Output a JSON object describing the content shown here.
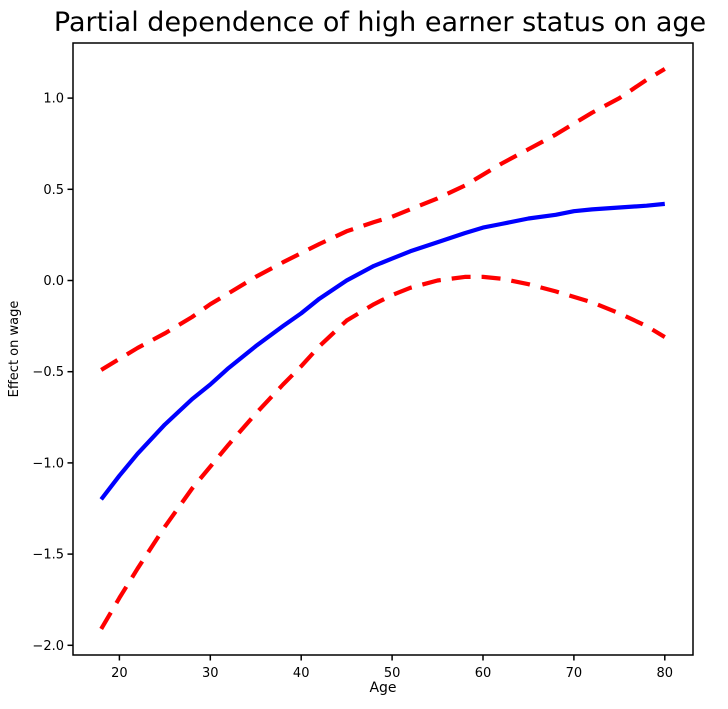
{
  "chart_data": {
    "type": "line",
    "title": "Partial dependence of high earner status on age",
    "xlabel": "Age",
    "ylabel": "Effect on wage",
    "xlim": [
      14.9,
      83.1
    ],
    "ylim": [
      -2.053,
      1.302
    ],
    "x_ticks": [
      20,
      30,
      40,
      50,
      60,
      70,
      80
    ],
    "y_ticks": [
      1.0,
      0.5,
      0.0,
      -0.5,
      -1.0,
      -1.5,
      -2.0
    ],
    "grid": false,
    "legend": null,
    "background_color": "#ffffff",
    "spine_color": "#000000",
    "x": [
      18,
      20,
      22,
      25,
      28,
      30,
      32,
      35,
      38,
      40,
      42,
      45,
      48,
      50,
      52,
      55,
      58,
      60,
      62,
      65,
      68,
      70,
      72,
      75,
      78,
      80
    ],
    "series": [
      {
        "name": "partial-dependence-estimate",
        "color": "#0000ff",
        "style": "solid",
        "width": 4.2,
        "values": [
          -1.2,
          -1.07,
          -0.95,
          -0.79,
          -0.65,
          -0.57,
          -0.48,
          -0.36,
          -0.25,
          -0.18,
          -0.1,
          0.0,
          0.08,
          0.12,
          0.16,
          0.21,
          0.26,
          0.29,
          0.31,
          0.34,
          0.36,
          0.38,
          0.39,
          0.4,
          0.41,
          0.42
        ]
      },
      {
        "name": "upper-confidence-band",
        "color": "#ff0000",
        "style": "dashed",
        "width": 4.2,
        "values": [
          -0.49,
          -0.43,
          -0.37,
          -0.29,
          -0.2,
          -0.13,
          -0.07,
          0.02,
          0.1,
          0.15,
          0.2,
          0.27,
          0.32,
          0.35,
          0.39,
          0.45,
          0.52,
          0.58,
          0.64,
          0.72,
          0.8,
          0.86,
          0.92,
          1.0,
          1.1,
          1.16
        ]
      },
      {
        "name": "lower-confidence-band",
        "color": "#ff0000",
        "style": "dashed",
        "width": 4.2,
        "values": [
          -1.91,
          -1.74,
          -1.58,
          -1.35,
          -1.14,
          -1.02,
          -0.9,
          -0.73,
          -0.57,
          -0.47,
          -0.36,
          -0.22,
          -0.13,
          -0.08,
          -0.04,
          0.0,
          0.02,
          0.02,
          0.01,
          -0.02,
          -0.06,
          -0.09,
          -0.12,
          -0.18,
          -0.25,
          -0.31
        ]
      }
    ]
  }
}
